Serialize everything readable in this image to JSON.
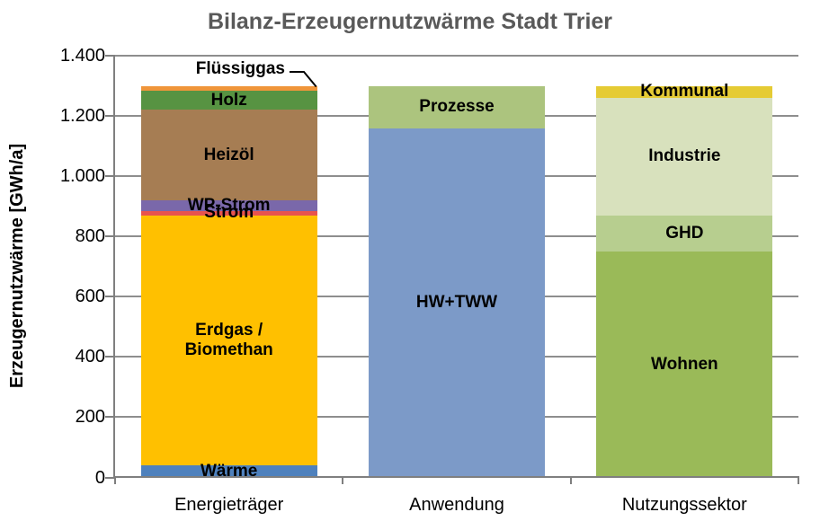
{
  "title": "Bilanz-Erzeugernutzwärme Stadt Trier",
  "y_axis_title": "Erzeugernutzwärme [GWh/a]",
  "chart_data": {
    "type": "bar",
    "stacked": true,
    "title": "Bilanz-Erzeugernutzwärme Stadt Trier",
    "ylabel": "Erzeugernutzwärme [GWh/a]",
    "unit": "GWh/a",
    "ylim": [
      0,
      1400
    ],
    "ytick_step": 200,
    "ytick_labels": [
      "0",
      "200",
      "400",
      "600",
      "800",
      "1.000",
      "1.200",
      "1.400"
    ],
    "grid": true,
    "legend": "none",
    "categories": [
      "Energieträger",
      "Anwendung",
      "Nutzungssektor"
    ],
    "bars": [
      {
        "category": "Energieträger",
        "total": 1300,
        "segments": [
          {
            "label": "Wärme",
            "value": 40,
            "color": "#4E81BD"
          },
          {
            "label": "Erdgas / Biomethan",
            "label_lines": [
              "Erdgas /",
              "Biomethan"
            ],
            "value": 830,
            "color": "#FFC000"
          },
          {
            "label": "Strom",
            "value": 15,
            "color": "#E8534E"
          },
          {
            "label": "WP-Strom",
            "value": 35,
            "color": "#7A68AA"
          },
          {
            "label": "Heizöl",
            "value": 300,
            "color": "#A67D53"
          },
          {
            "label": "Holz",
            "value": 63,
            "color": "#579342"
          },
          {
            "label": "Flüssiggas",
            "value": 17,
            "color": "#F0953A",
            "label_placement": "callout"
          }
        ]
      },
      {
        "category": "Anwendung",
        "total": 1300,
        "segments": [
          {
            "label": "HW+TWW",
            "value": 1160,
            "color": "#7C9AC8"
          },
          {
            "label": "Prozesse",
            "value": 140,
            "color": "#ACC47E"
          }
        ]
      },
      {
        "category": "Nutzungssektor",
        "total": 1300,
        "segments": [
          {
            "label": "Wohnen",
            "value": 750,
            "color": "#9ABA58"
          },
          {
            "label": "GHD",
            "value": 120,
            "color": "#B7CE8F"
          },
          {
            "label": "Industrie",
            "value": 390,
            "color": "#D8E1BD"
          },
          {
            "label": "Kommunal",
            "value": 40,
            "color": "#E5CB34"
          }
        ]
      }
    ],
    "colors": {
      "title_text": "#595959",
      "axis": "#7F7F7F",
      "gridline": "#8E8E8E",
      "label_text": "#000000",
      "background": "#FFFFFF"
    }
  }
}
